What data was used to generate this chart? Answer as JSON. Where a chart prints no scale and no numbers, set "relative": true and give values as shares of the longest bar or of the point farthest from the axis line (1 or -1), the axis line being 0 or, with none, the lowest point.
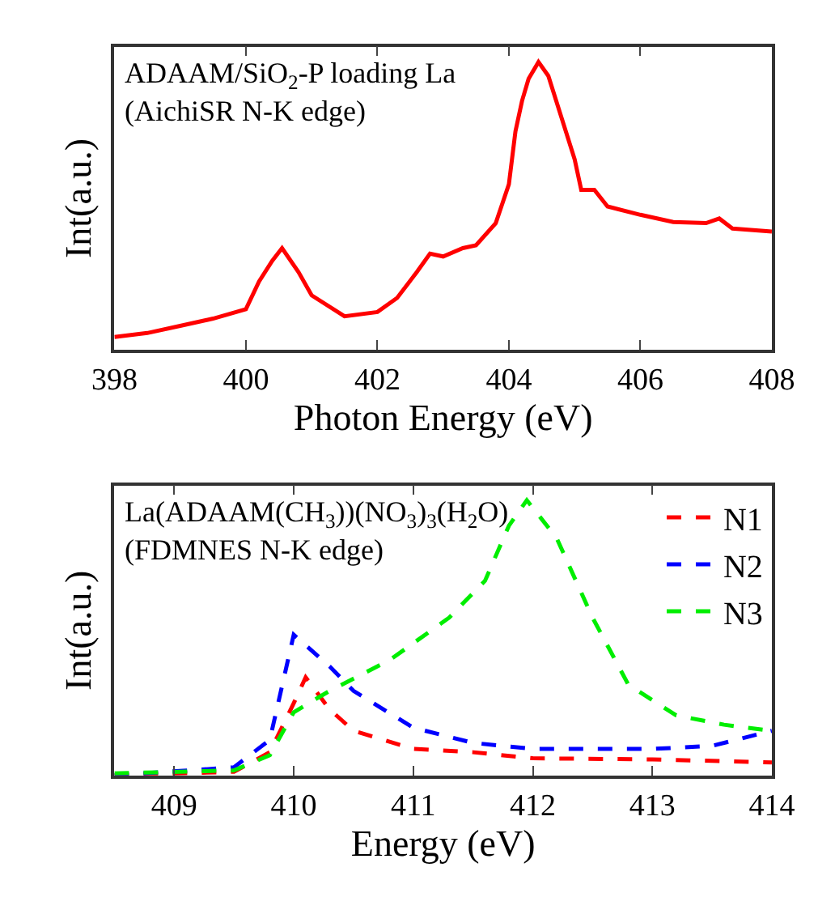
{
  "chart_data": [
    {
      "type": "line",
      "title": "ADAAM/SiO$_{2}$-P loading La\n(AichiSR N-K edge)",
      "xlabel": "Photon Energy (eV)",
      "ylabel": "Int(a.u.)",
      "relative": true,
      "xlim": [
        398,
        408
      ],
      "xticks": [
        398,
        400,
        402,
        404,
        406,
        408
      ],
      "legend": false,
      "marker": "none",
      "line_style": "solid",
      "series": [
        {
          "color": "#ff0000",
          "x": [
            398.0,
            398.5,
            399.0,
            399.5,
            400.0,
            400.2,
            400.4,
            400.55,
            400.8,
            401.0,
            401.5,
            402.0,
            402.3,
            402.6,
            402.8,
            403.0,
            403.3,
            403.5,
            403.8,
            404.0,
            404.1,
            404.2,
            404.3,
            404.45,
            404.6,
            404.8,
            405.0,
            405.1,
            405.3,
            405.5,
            406.0,
            406.5,
            407.0,
            407.2,
            407.4,
            408.0
          ],
          "values": [
            0.044,
            0.058,
            0.083,
            0.108,
            0.141,
            0.237,
            0.309,
            0.353,
            0.27,
            0.189,
            0.116,
            0.131,
            0.18,
            0.27,
            0.334,
            0.324,
            0.353,
            0.363,
            0.44,
            0.575,
            0.759,
            0.865,
            0.942,
            1,
            0.952,
            0.807,
            0.662,
            0.556,
            0.556,
            0.498,
            0.469,
            0.444,
            0.44,
            0.456,
            0.421,
            0.411
          ]
        }
      ]
    },
    {
      "type": "line",
      "title": "La(ADAAM(CH$_{3}$))(NO$_{3}$)$_{3}$(H$_{2}$O)\n(FDMNES N-K edge)",
      "xlabel": "Energy (eV)",
      "ylabel": "Int(a.u.)",
      "relative": true,
      "xlim": [
        408.5,
        414
      ],
      "xticks": [
        409,
        410,
        411,
        412,
        413,
        414
      ],
      "legend": "top right",
      "marker": "none",
      "line_style": "dashed",
      "series": [
        {
          "name": "N1",
          "color": "#ff0000",
          "x": [
            408.5,
            409.5,
            409.8,
            410.0,
            410.1,
            410.3,
            410.5,
            411.0,
            411.5,
            412.0,
            413.0,
            414.0
          ],
          "values": [
            0,
            0.013,
            0.084,
            0.262,
            0.356,
            0.24,
            0.162,
            0.096,
            0.084,
            0.062,
            0.058,
            0.047
          ]
        },
        {
          "name": "N2",
          "color": "#0000ff",
          "x": [
            408.5,
            409.5,
            409.8,
            410.0,
            410.3,
            410.5,
            411.0,
            411.5,
            412.0,
            413.0,
            413.5,
            414.0
          ],
          "values": [
            0,
            0.029,
            0.129,
            0.511,
            0.396,
            0.307,
            0.173,
            0.118,
            0.096,
            0.096,
            0.107,
            0.162
          ]
        },
        {
          "name": "N3",
          "color": "#00ee00",
          "x": [
            408.5,
            409.5,
            409.8,
            410.0,
            410.3,
            410.8,
            411.3,
            411.6,
            411.8,
            411.95,
            412.2,
            412.5,
            412.8,
            413.2,
            413.6,
            414.0
          ],
          "values": [
            0.007,
            0.018,
            0.073,
            0.229,
            0.307,
            0.418,
            0.573,
            0.707,
            0.907,
            1,
            0.862,
            0.573,
            0.329,
            0.218,
            0.184,
            0.162
          ]
        }
      ]
    }
  ]
}
